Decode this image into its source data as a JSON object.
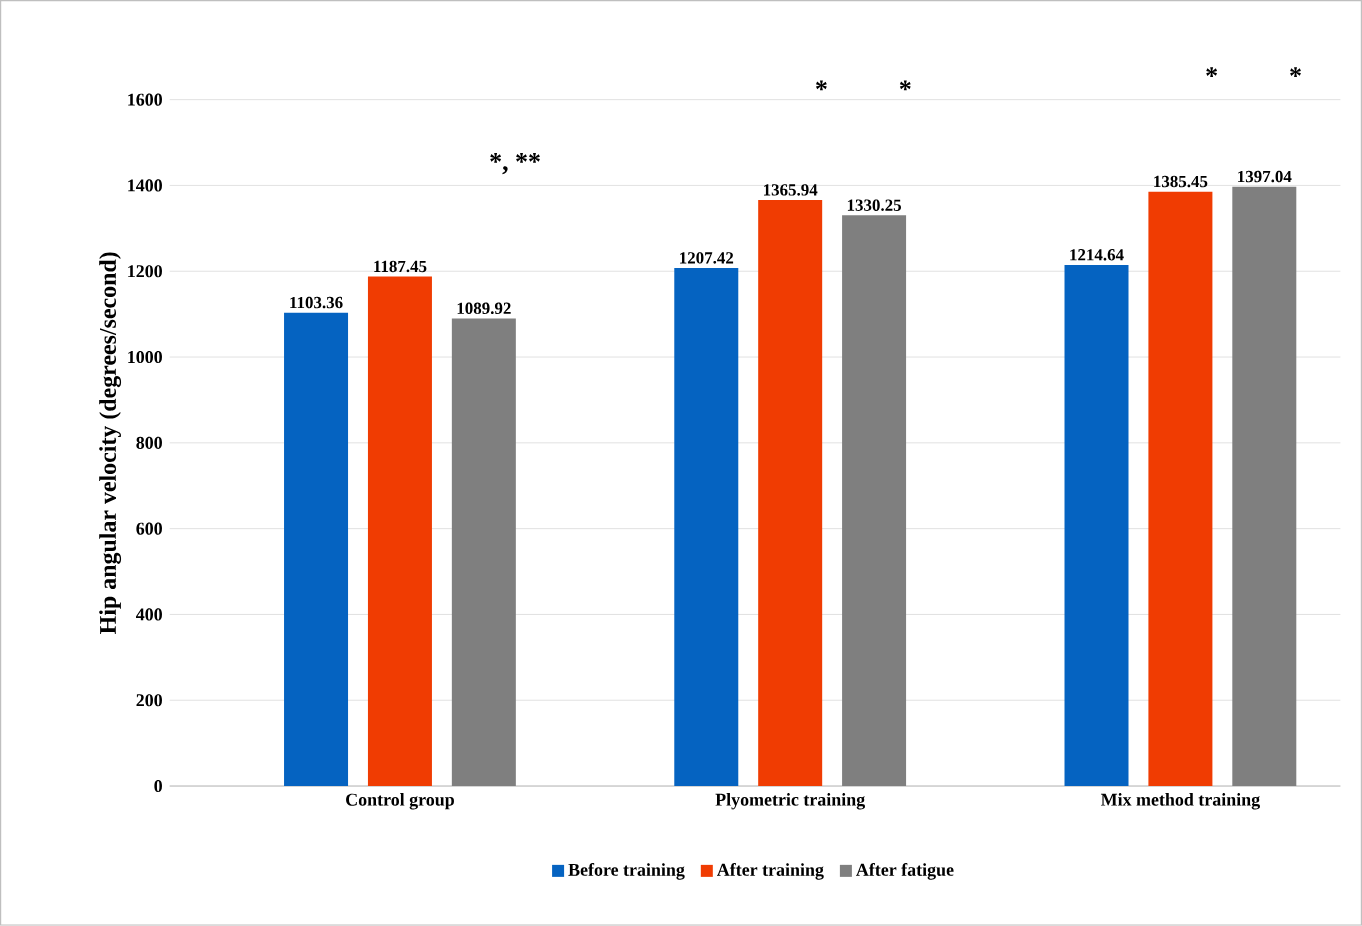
{
  "chart_data": {
    "type": "bar",
    "ylabel": "Hip angular velocity (degrees/second)",
    "categories": [
      "Control group",
      "Plyometric training",
      "Mix method training"
    ],
    "series": [
      {
        "name": "Before training",
        "color": "#0563c1",
        "values": [
          1103.36,
          1207.42,
          1214.64
        ],
        "value_labels": [
          "1103.36",
          "1207.42",
          "1214.64"
        ]
      },
      {
        "name": "After training",
        "color": "#f03c02",
        "values": [
          1187.45,
          1365.94,
          1385.45
        ],
        "value_labels": [
          "1187.45",
          "1365.94",
          "1385.45"
        ]
      },
      {
        "name": "After fatigue",
        "color": "#7f7f7f",
        "values": [
          1089.92,
          1330.25,
          1397.04
        ],
        "value_labels": [
          "1089.92",
          "1330.25",
          "1397.04"
        ]
      }
    ],
    "ylim": [
      0,
      1600
    ],
    "yticks": [
      0,
      200,
      400,
      600,
      800,
      1000,
      1200,
      1400,
      1600
    ],
    "grid": "y",
    "legend": "bottom",
    "annotations": [
      "*, **",
      "*",
      "*",
      "*",
      "*"
    ]
  }
}
